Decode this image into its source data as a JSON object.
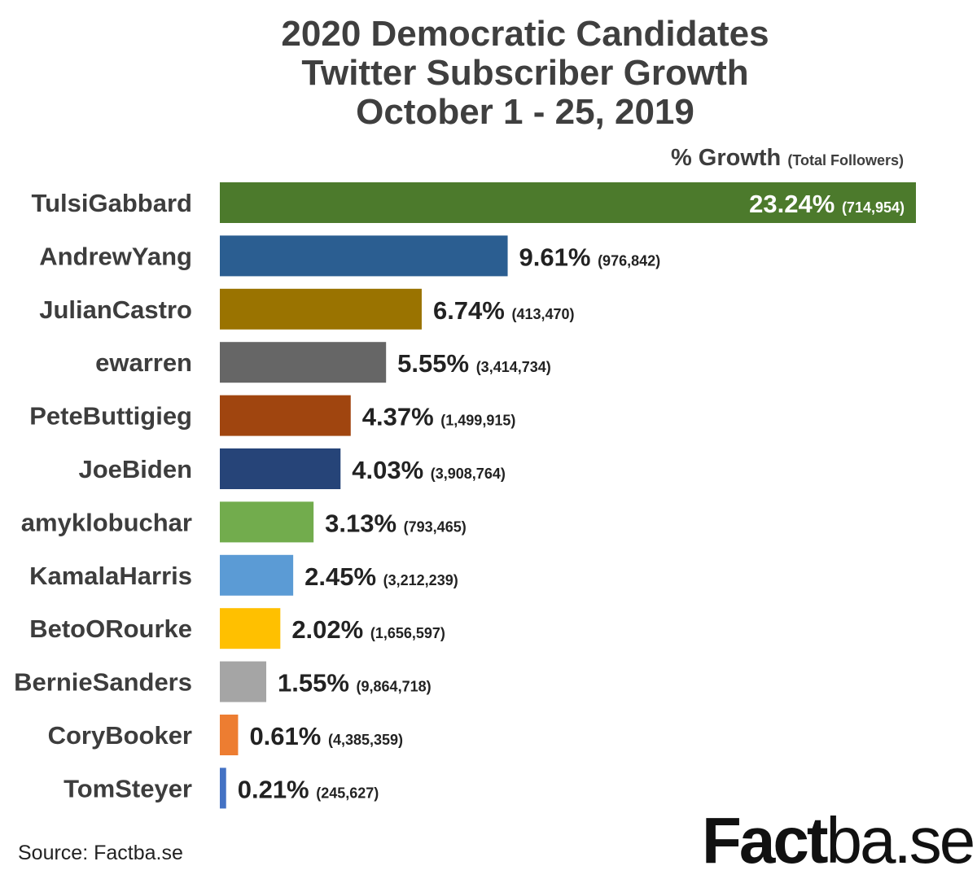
{
  "title": {
    "line1": "2020 Democratic Candidates",
    "line2": "Twitter Subscriber Growth",
    "line3": "October 1 - 25, 2019"
  },
  "source": "Source: Factba.se",
  "logo": {
    "strong": "Fact",
    "light": "ba.se"
  },
  "colors": {
    "label_text": "#3d3d3d",
    "value_text": "#222222",
    "header_text": "#3d3d3d"
  },
  "chart_data": {
    "type": "bar",
    "orientation": "horizontal",
    "title": "2020 Democratic Candidates Twitter Subscriber Growth October 1 - 25, 2019",
    "header": {
      "main": "% Growth",
      "sub": "(Total Followers)"
    },
    "grid": false,
    "xlim": [
      0,
      23.24
    ],
    "categories": [
      "TulsiGabbard",
      "AndrewYang",
      "JulianCastro",
      "ewarren",
      "PeteButtigieg",
      "JoeBiden",
      "amyklobuchar",
      "KamalaHarris",
      "BetoORourke",
      "BernieSanders",
      "CoryBooker",
      "TomSteyer"
    ],
    "values": [
      23.24,
      9.61,
      6.74,
      5.55,
      4.37,
      4.03,
      3.13,
      2.45,
      2.02,
      1.55,
      0.61,
      0.21
    ],
    "value_labels": [
      "23.24%",
      "9.61%",
      "6.74%",
      "5.55%",
      "4.37%",
      "4.03%",
      "3.13%",
      "2.45%",
      "2.02%",
      "1.55%",
      "0.61%",
      "0.21%"
    ],
    "follower_labels": [
      "(714,954)",
      "(976,842)",
      "(413,470)",
      "(3,414,734)",
      "(1,499,915)",
      "(3,908,764)",
      "(793,465)",
      "(3,212,239)",
      "(1,656,597)",
      "(9,864,718)",
      "(4,385,359)",
      "(245,627)"
    ],
    "colors": [
      "#4c7a2c",
      "#2b5e91",
      "#9a7300",
      "#666666",
      "#a0450f",
      "#264478",
      "#72ac4d",
      "#5b9bd5",
      "#ffc000",
      "#a5a5a5",
      "#ed7d31",
      "#4472c4"
    ]
  }
}
